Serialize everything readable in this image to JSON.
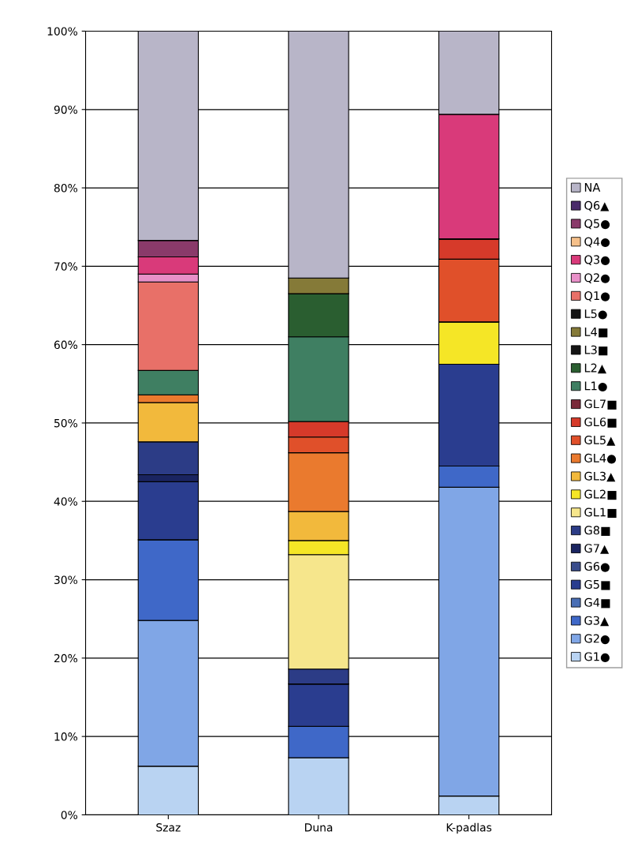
{
  "chart_data": {
    "type": "bar",
    "stacked": true,
    "categories": [
      "Szaz",
      "Duna",
      "K-padlas"
    ],
    "series": [
      {
        "name": "G1●",
        "color": "#b9d3f2",
        "values": [
          6.2,
          7.3,
          2.4
        ]
      },
      {
        "name": "G2●",
        "color": "#80a6e6",
        "values": [
          18.6,
          0,
          39.4
        ]
      },
      {
        "name": "G3▲",
        "color": "#3f68c8",
        "values": [
          10.3,
          4.0,
          2.7
        ]
      },
      {
        "name": "G4■",
        "color": "#4a6fb5",
        "values": [
          0,
          0,
          0
        ]
      },
      {
        "name": "G5■",
        "color": "#2a3d8f",
        "values": [
          7.4,
          5.4,
          13.0
        ]
      },
      {
        "name": "G6●",
        "color": "#3a4d8c",
        "values": [
          0,
          0,
          0
        ]
      },
      {
        "name": "G7▲",
        "color": "#1a2460",
        "values": [
          0.9,
          0,
          0
        ]
      },
      {
        "name": "G8■",
        "color": "#2c3c86",
        "values": [
          4.2,
          1.9,
          0
        ]
      },
      {
        "name": "GL1■",
        "color": "#f6e68c",
        "values": [
          0,
          14.6,
          0
        ]
      },
      {
        "name": "GL2■",
        "color": "#f5e626",
        "values": [
          0,
          1.8,
          5.4
        ]
      },
      {
        "name": "GL3▲",
        "color": "#f2b93c",
        "values": [
          5.0,
          3.7,
          0
        ]
      },
      {
        "name": "GL4●",
        "color": "#ea7a2e",
        "values": [
          1.0,
          7.5,
          0
        ]
      },
      {
        "name": "GL5▲",
        "color": "#e0502a",
        "values": [
          0,
          2.0,
          8.0
        ]
      },
      {
        "name": "GL6■",
        "color": "#d63a2a",
        "values": [
          0,
          2.0,
          2.6
        ]
      },
      {
        "name": "GL7■",
        "color": "#7a2a3a",
        "values": [
          0,
          0,
          0
        ]
      },
      {
        "name": "L1●",
        "color": "#3f7f62",
        "values": [
          3.1,
          10.8,
          0
        ]
      },
      {
        "name": "L2▲",
        "color": "#2a5e30",
        "values": [
          0,
          5.5,
          0
        ]
      },
      {
        "name": "L3■",
        "color": "#151515",
        "values": [
          0,
          0,
          0
        ]
      },
      {
        "name": "L4■",
        "color": "#857a38",
        "values": [
          0,
          2.0,
          0
        ]
      },
      {
        "name": "L5●",
        "color": "#151515",
        "values": [
          0,
          0,
          0
        ]
      },
      {
        "name": "Q1●",
        "color": "#e87068",
        "values": [
          11.3,
          0,
          0
        ]
      },
      {
        "name": "Q2●",
        "color": "#e890c8",
        "values": [
          1.0,
          0,
          0
        ]
      },
      {
        "name": "Q3●",
        "color": "#d93a7a",
        "values": [
          2.2,
          0,
          15.9
        ]
      },
      {
        "name": "Q4●",
        "color": "#f5c08a",
        "values": [
          0,
          0,
          0
        ]
      },
      {
        "name": "Q5●",
        "color": "#8a3a6a",
        "values": [
          2.1,
          0,
          0
        ]
      },
      {
        "name": "Q6▲",
        "color": "#4a2a6a",
        "values": [
          0,
          0,
          0
        ]
      },
      {
        "name": "NA",
        "color": "#b8b5c8",
        "values": [
          26.7,
          31.5,
          10.6
        ]
      }
    ],
    "ylim": [
      0,
      100
    ],
    "yticks": [
      {
        "value": 0,
        "label": "0%"
      },
      {
        "value": 10,
        "label": "10%"
      },
      {
        "value": 20,
        "label": "20%"
      },
      {
        "value": 30,
        "label": "30%"
      },
      {
        "value": 40,
        "label": "40%"
      },
      {
        "value": 50,
        "label": "50%"
      },
      {
        "value": 60,
        "label": "60%"
      },
      {
        "value": 70,
        "label": "70%"
      },
      {
        "value": 80,
        "label": "80%"
      },
      {
        "value": 90,
        "label": "90%"
      },
      {
        "value": 100,
        "label": "100%"
      }
    ],
    "grid": "y",
    "legend": "right"
  }
}
